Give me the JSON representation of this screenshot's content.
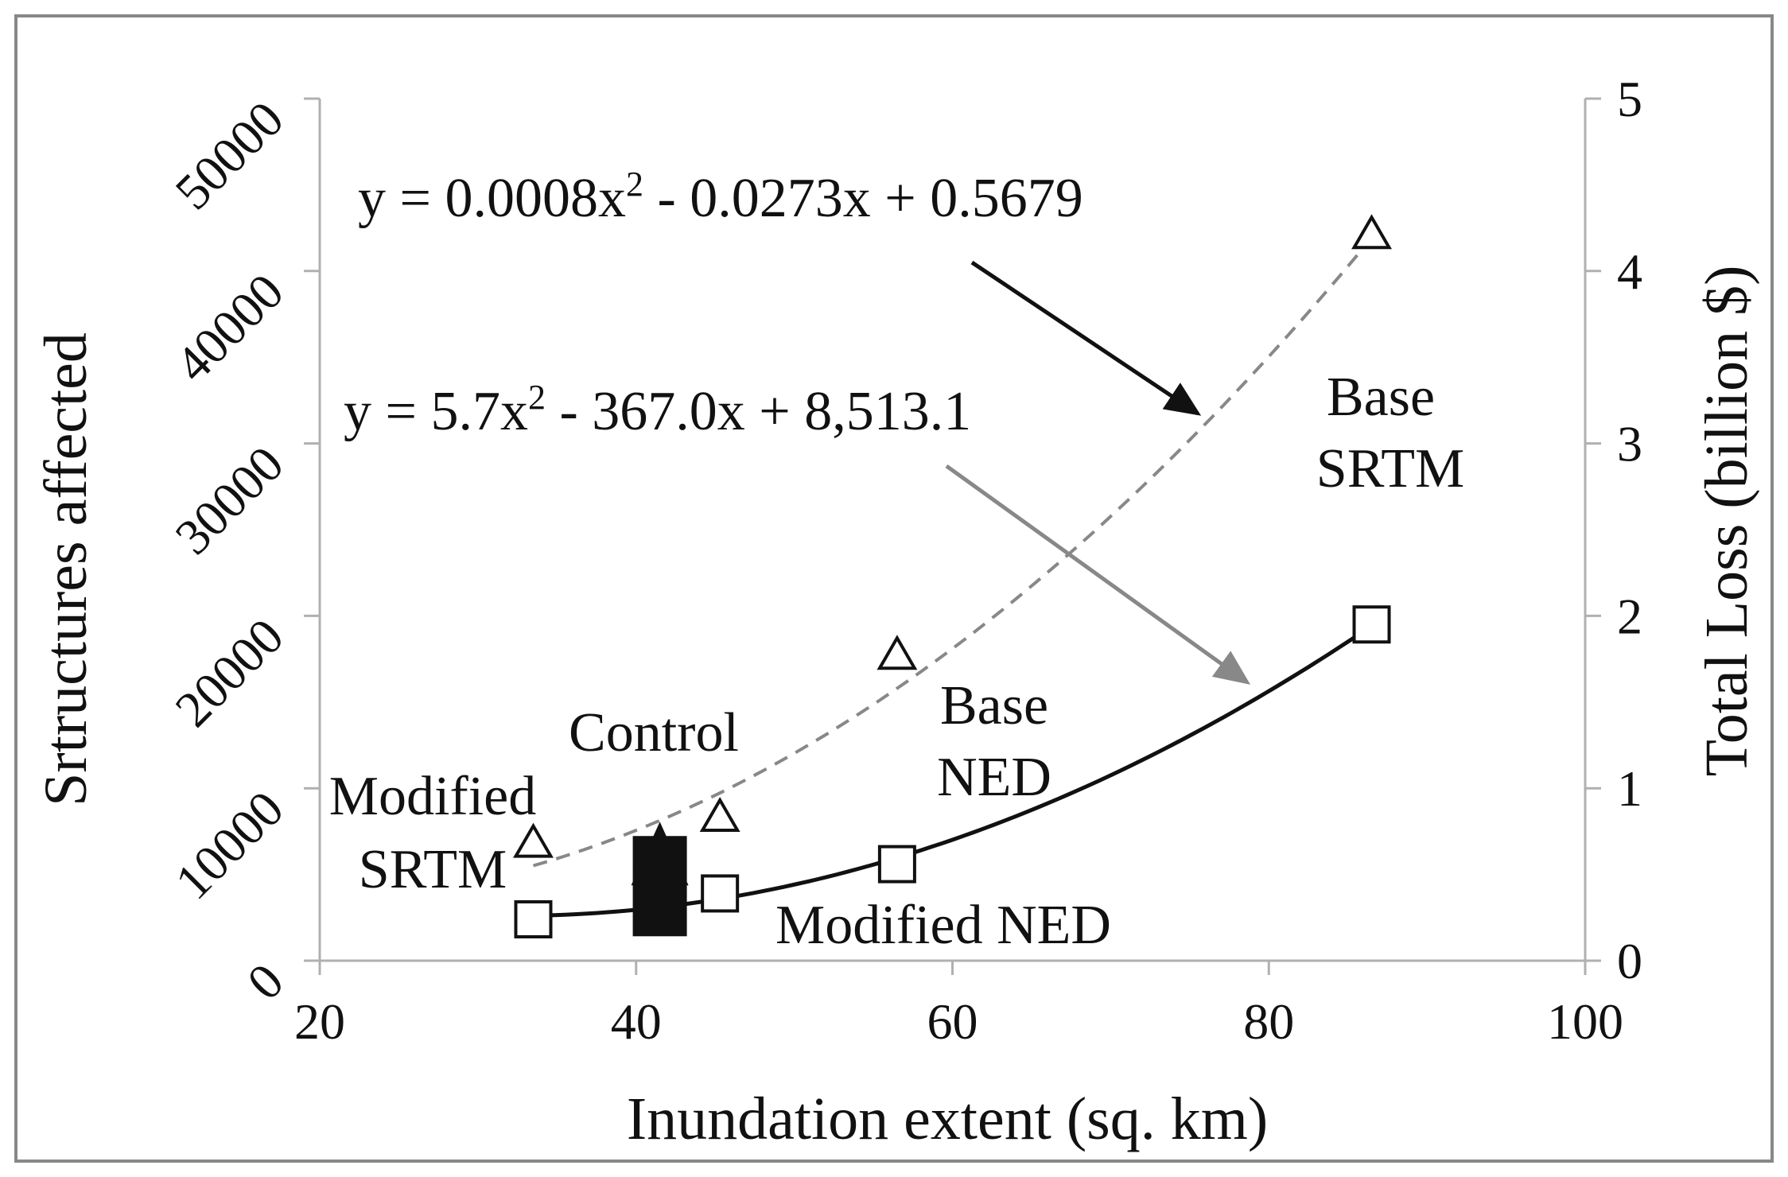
{
  "chart_data": {
    "type": "scatter",
    "xlabel": "Inundation  extent (sq. km)",
    "ylabel": "Srtructures  affected",
    "y2label": "Total Loss (billion $)",
    "xlim": [
      20,
      100
    ],
    "ylim": [
      0,
      50000
    ],
    "y2lim": [
      0,
      5
    ],
    "xticks": [
      "20",
      "40",
      "60",
      "80",
      "100"
    ],
    "yticks": [
      "0",
      "10000",
      "20000",
      "30000",
      "40000",
      "50000"
    ],
    "y2ticks": [
      "0",
      "1",
      "2",
      "3",
      "4",
      "5"
    ],
    "series": [
      {
        "name": "Structures affected",
        "axis": "left",
        "marker": "triangle",
        "points": [
          {
            "x": 33.5,
            "y": 6800
          },
          {
            "x": 41.5,
            "y": 7600
          },
          {
            "x": 45.3,
            "y": 8300
          },
          {
            "x": 56.5,
            "y": 17700
          },
          {
            "x": 86.5,
            "y": 42100
          }
        ]
      },
      {
        "name": "Total Loss",
        "axis": "right",
        "marker": "square",
        "points": [
          {
            "x": 33.5,
            "y": 0.24
          },
          {
            "x": 41.5,
            "y": 0.28
          },
          {
            "x": 45.3,
            "y": 0.39
          },
          {
            "x": 56.5,
            "y": 0.56
          },
          {
            "x": 86.5,
            "y": 1.95
          }
        ]
      }
    ],
    "control_point": {
      "x": 41.5,
      "y_left": 7600,
      "y_right": 0.28
    },
    "trendlines": [
      {
        "name": "structures-fit",
        "axis": "left",
        "equation": "y = 5.7x² - 367.0x + 8,513.1",
        "a": 5.7,
        "b": -367.0,
        "c": 8513.1,
        "x_range": [
          33.5,
          86.5
        ],
        "style": "solid"
      },
      {
        "name": "loss-fit",
        "axis": "right",
        "equation": "y = 0.0008x² - 0.0273x + 0.5679",
        "a": 0.0008,
        "b": -0.0273,
        "c": 0.5679,
        "x_range": [
          33.5,
          86.5
        ],
        "style": "dashed"
      }
    ],
    "equations": {
      "loss": {
        "pre": "y = 0.0008x",
        "sup": "2",
        "post": " - 0.0273x + 0.5679"
      },
      "structures": {
        "pre": "y = 5.7x",
        "sup": "2",
        "post": " - 367.0x + 8,513.1"
      }
    },
    "labels": {
      "base_srtm": [
        "Base",
        "SRTM"
      ],
      "base_ned": [
        "Base",
        "NED"
      ],
      "control": "Control",
      "modified_srtm": [
        "Modified",
        "SRTM"
      ],
      "modified_ned": "Modified NED"
    },
    "colors": {
      "axis": "#b0b0b0",
      "ink": "#111111",
      "loss": "#888888",
      "frame": "#888888"
    }
  }
}
